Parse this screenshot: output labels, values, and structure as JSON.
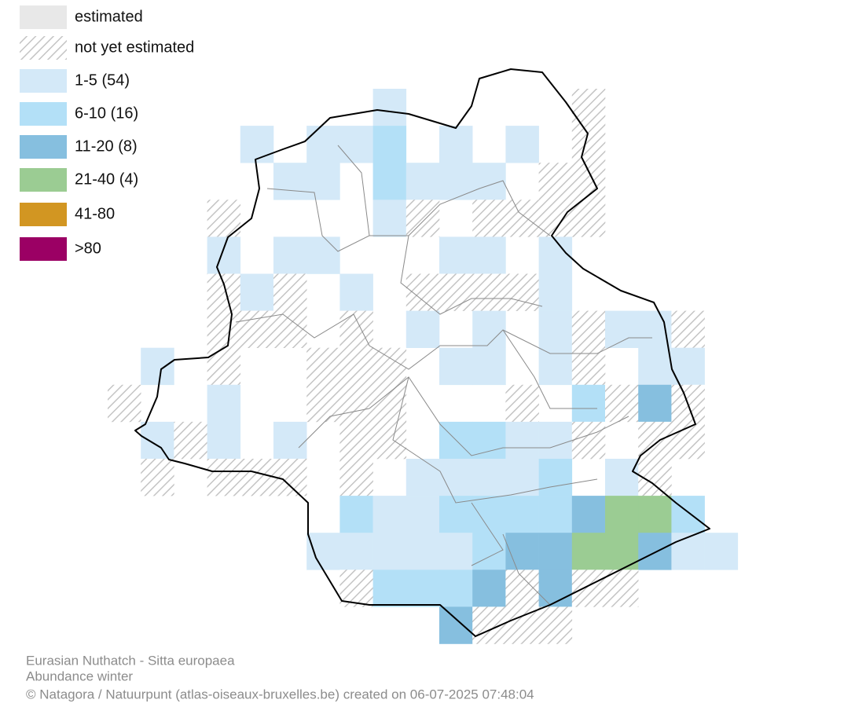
{
  "legend": [
    {
      "label": "estimated",
      "color": "#e8e8e8"
    },
    {
      "label": "not yet estimated",
      "color": "#c8c8c8",
      "pattern": "hatch"
    },
    {
      "label": "1-5 (54)",
      "color": "#d4e9f8"
    },
    {
      "label": "6-10 (16)",
      "color": "#b3e0f7"
    },
    {
      "label": "11-20 (8)",
      "color": "#86bfdf"
    },
    {
      "label": "21-40 (4)",
      "color": "#9bcc93"
    },
    {
      "label": "41-80",
      "color": "#d29622"
    },
    {
      "label": ">80",
      "color": "#9b0064"
    }
  ],
  "footer": {
    "species": "Eurasian Nuthatch - Sitta europaea",
    "subtitle": "Abundance winter",
    "credit": "© Natagora / Natuurpunt (atlas-oiseaux-bruxelles.be) created on 06-07-2025 07:48:04"
  }
}
